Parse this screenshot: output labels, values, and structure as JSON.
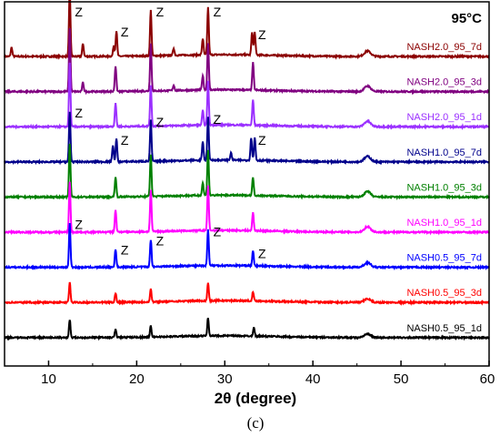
{
  "chart_data": {
    "type": "line",
    "title": "",
    "xlabel": "2θ (degree)",
    "ylabel": "",
    "xlim": [
      5,
      60
    ],
    "x_ticks": [
      10,
      20,
      30,
      40,
      50,
      60
    ],
    "x_tick_labels": [
      "10",
      "20",
      "30",
      "40",
      "50",
      "60"
    ],
    "grid": false,
    "legend": "series labels printed at right end of each curve",
    "annotations": {
      "temperature": "95°C",
      "peak_marker": "Z",
      "caption": "(c)"
    },
    "peak_positions_2theta": [
      12.4,
      17.6,
      21.6,
      28.1,
      33.2
    ],
    "series": [
      {
        "name": "NASH2.0_95_7d",
        "color": "#8b0000",
        "peaks": [
          [
            5.8,
            10
          ],
          [
            12.4,
            72
          ],
          [
            13.9,
            14
          ],
          [
            17.4,
            12
          ],
          [
            17.7,
            28
          ],
          [
            21.6,
            50
          ],
          [
            24.2,
            8
          ],
          [
            27.5,
            18
          ],
          [
            28.1,
            52
          ],
          [
            33.1,
            25
          ],
          [
            33.4,
            25
          ],
          [
            46.2,
            6
          ]
        ],
        "z_marked": true
      },
      {
        "name": "NASH2.0_95_3d",
        "color": "#800080",
        "peaks": [
          [
            12.4,
            70
          ],
          [
            13.9,
            10
          ],
          [
            17.6,
            28
          ],
          [
            21.6,
            52
          ],
          [
            24.2,
            6
          ],
          [
            27.5,
            16
          ],
          [
            28.1,
            52
          ],
          [
            33.2,
            30
          ],
          [
            46.2,
            6
          ]
        ],
        "z_marked": false
      },
      {
        "name": "NASH2.0_95_1d",
        "color": "#9b30ff",
        "peaks": [
          [
            12.4,
            70
          ],
          [
            17.6,
            26
          ],
          [
            21.6,
            45
          ],
          [
            27.5,
            16
          ],
          [
            28.1,
            48
          ],
          [
            33.2,
            28
          ],
          [
            46.2,
            6
          ]
        ],
        "z_marked": false
      },
      {
        "name": "NASH1.0_95_7d",
        "color": "#00008b",
        "peaks": [
          [
            12.4,
            55
          ],
          [
            17.3,
            18
          ],
          [
            17.7,
            25
          ],
          [
            21.6,
            45
          ],
          [
            27.5,
            20
          ],
          [
            28.1,
            48
          ],
          [
            30.7,
            8
          ],
          [
            33.0,
            25
          ],
          [
            33.4,
            25
          ],
          [
            46.2,
            6
          ]
        ],
        "z_marked": true
      },
      {
        "name": "NASH1.0_95_3d",
        "color": "#008000",
        "peaks": [
          [
            12.4,
            58
          ],
          [
            17.6,
            22
          ],
          [
            21.6,
            46
          ],
          [
            27.5,
            14
          ],
          [
            28.1,
            50
          ],
          [
            33.2,
            20
          ],
          [
            46.2,
            6
          ]
        ],
        "z_marked": false
      },
      {
        "name": "NASH1.0_95_1d",
        "color": "#ff00ff",
        "peaks": [
          [
            12.4,
            55
          ],
          [
            17.6,
            24
          ],
          [
            21.6,
            46
          ],
          [
            28.1,
            50
          ],
          [
            33.2,
            20
          ],
          [
            46.2,
            6
          ]
        ],
        "z_marked": false
      },
      {
        "name": "NASH0.5_95_7d",
        "color": "#0000ff",
        "peaks": [
          [
            12.4,
            48
          ],
          [
            17.6,
            20
          ],
          [
            21.6,
            30
          ],
          [
            28.1,
            40
          ],
          [
            33.2,
            16
          ],
          [
            46.2,
            5
          ]
        ],
        "z_marked": true
      },
      {
        "name": "NASH0.5_95_3d",
        "color": "#ff0000",
        "peaks": [
          [
            12.4,
            22
          ],
          [
            17.6,
            10
          ],
          [
            21.6,
            14
          ],
          [
            28.1,
            20
          ],
          [
            33.2,
            10
          ],
          [
            46.2,
            4
          ]
        ],
        "z_marked": false
      },
      {
        "name": "NASH0.5_95_1d",
        "color": "#000000",
        "peaks": [
          [
            12.4,
            20
          ],
          [
            17.6,
            9
          ],
          [
            21.6,
            12
          ],
          [
            28.1,
            20
          ],
          [
            33.3,
            10
          ],
          [
            46.2,
            4
          ]
        ],
        "z_marked": false
      }
    ]
  }
}
